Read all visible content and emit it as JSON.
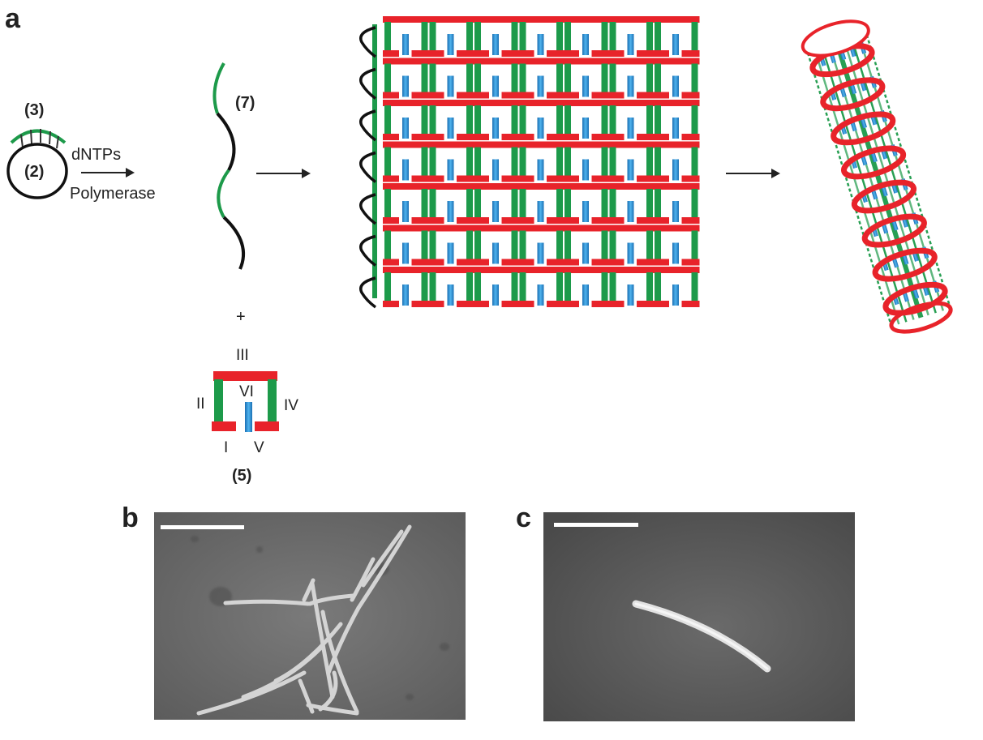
{
  "panels": {
    "a": "a",
    "b": "b",
    "c": "c"
  },
  "labels": {
    "primer": "(3)",
    "template": "(2)",
    "dntps": "dNTPs",
    "polymerase": "Polymerase",
    "strand": "(7)",
    "plus": "+",
    "tile": "(5)"
  },
  "tile_domains": [
    "I",
    "II",
    "III",
    "IV",
    "V",
    "VI"
  ],
  "grid": {
    "rows": 7,
    "cols": 7
  },
  "colors": {
    "red": "#e8232a",
    "green": "#1d9a4a",
    "blue": "#2a8fd6",
    "black": "#111111",
    "micrograph_bg": "#6e6e6e",
    "micrograph_bg_dark": "#4c4c4c"
  }
}
